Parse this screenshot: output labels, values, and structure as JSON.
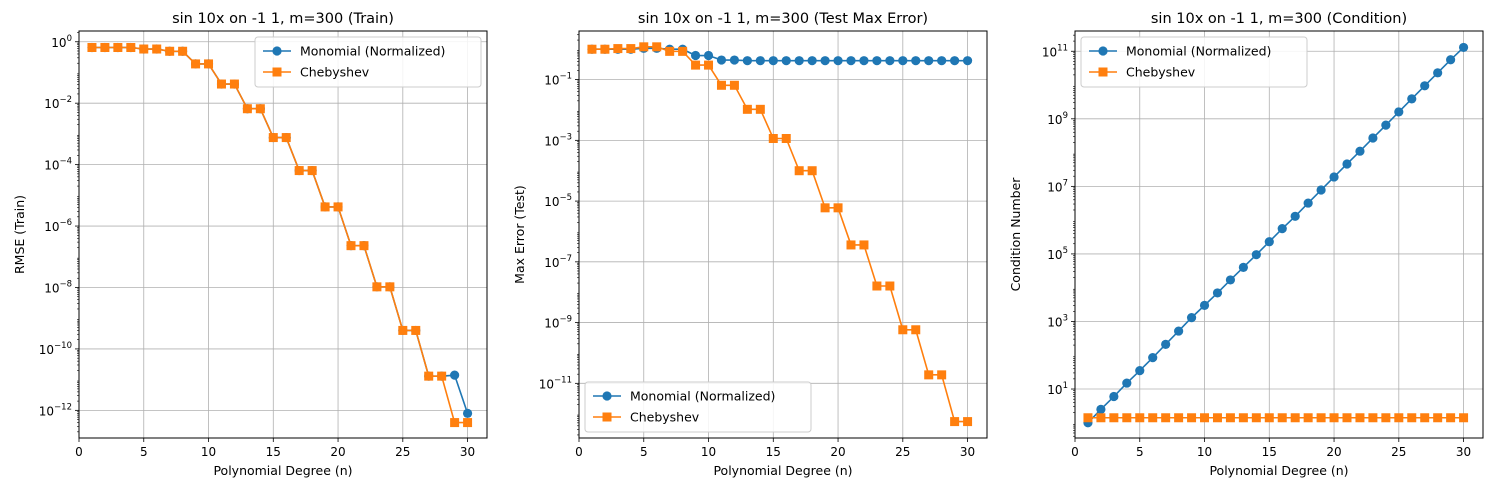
{
  "chart_data": [
    {
      "type": "line",
      "title": "sin 10x on -1 1, m=300 (Train)",
      "xlabel": "Polynomial Degree (n)",
      "ylabel": "RMSE (Train)",
      "yscale": "log",
      "grid": true,
      "legend_position": "top-right",
      "xlim": [
        0,
        31.5
      ],
      "ylim_log10": [
        -12.9,
        0.35
      ],
      "x_ticks": [
        0,
        5,
        10,
        15,
        20,
        25,
        30
      ],
      "y_tick_exponents": [
        -12,
        -10,
        -8,
        -6,
        -4,
        -2,
        0
      ],
      "x": [
        1,
        2,
        3,
        4,
        5,
        6,
        7,
        8,
        9,
        10,
        11,
        12,
        13,
        14,
        15,
        16,
        17,
        18,
        19,
        20,
        21,
        22,
        23,
        24,
        25,
        26,
        27,
        28,
        29,
        30
      ],
      "series": [
        {
          "name": "Monomial (Normalized)",
          "color": "#1f77b4",
          "marker": "circle",
          "values": [
            0.65,
            0.65,
            0.65,
            0.65,
            0.58,
            0.58,
            0.49,
            0.49,
            0.19,
            0.19,
            0.042,
            0.042,
            0.0066,
            0.0066,
            0.00076,
            0.00076,
            6.4e-05,
            6.4e-05,
            4.2e-06,
            4.2e-06,
            2.3e-07,
            2.3e-07,
            1.05e-08,
            1.05e-08,
            4e-10,
            4e-10,
            1.3e-11,
            1.3e-11,
            1.4e-11,
            8e-13
          ]
        },
        {
          "name": "Chebyshev",
          "color": "#ff7f0e",
          "marker": "square",
          "values": [
            0.65,
            0.65,
            0.65,
            0.65,
            0.58,
            0.58,
            0.49,
            0.49,
            0.19,
            0.19,
            0.042,
            0.042,
            0.0066,
            0.0066,
            0.00076,
            0.00076,
            6.4e-05,
            6.4e-05,
            4.2e-06,
            4.2e-06,
            2.3e-07,
            2.3e-07,
            1.05e-08,
            1.05e-08,
            4e-10,
            4e-10,
            1.3e-11,
            1.3e-11,
            4e-13,
            4e-13
          ]
        }
      ]
    },
    {
      "type": "line",
      "title": "sin 10x on -1 1, m=300 (Test Max Error)",
      "xlabel": "Polynomial Degree (n)",
      "ylabel": "Max Error (Test)",
      "yscale": "log",
      "grid": true,
      "legend_position": "bottom-left",
      "xlim": [
        0,
        31.5
      ],
      "ylim_log10": [
        -12.8,
        0.6
      ],
      "x_ticks": [
        0,
        5,
        10,
        15,
        20,
        25,
        30
      ],
      "y_tick_exponents": [
        -11,
        -9,
        -7,
        -5,
        -3,
        -1
      ],
      "x": [
        1,
        2,
        3,
        4,
        5,
        6,
        7,
        8,
        9,
        10,
        11,
        12,
        13,
        14,
        15,
        16,
        17,
        18,
        19,
        20,
        21,
        22,
        23,
        24,
        25,
        26,
        27,
        28,
        29,
        30
      ],
      "series": [
        {
          "name": "Monomial (Normalized)",
          "color": "#1f77b4",
          "marker": "circle",
          "values": [
            1.0,
            1.0,
            1.0,
            1.0,
            1.07,
            1.07,
            1.0,
            1.0,
            0.62,
            0.62,
            0.44,
            0.44,
            0.42,
            0.42,
            0.42,
            0.42,
            0.42,
            0.42,
            0.42,
            0.42,
            0.42,
            0.42,
            0.42,
            0.42,
            0.42,
            0.42,
            0.42,
            0.42,
            0.42,
            0.42
          ]
        },
        {
          "name": "Chebyshev",
          "color": "#ff7f0e",
          "marker": "square",
          "values": [
            1.0,
            1.0,
            1.05,
            1.05,
            1.2,
            1.2,
            0.85,
            0.85,
            0.3,
            0.3,
            0.065,
            0.065,
            0.0105,
            0.0105,
            0.00115,
            0.00115,
            0.0001,
            0.0001,
            6e-06,
            6e-06,
            3.6e-07,
            3.6e-07,
            1.6e-08,
            1.6e-08,
            5.8e-10,
            5.8e-10,
            1.9e-11,
            1.9e-11,
            5.5e-13,
            5.5e-13
          ]
        }
      ]
    },
    {
      "type": "line",
      "title": "sin 10x on -1 1, m=300 (Condition)",
      "xlabel": "Polynomial Degree (n)",
      "ylabel": "Condition Number",
      "yscale": "log",
      "grid": true,
      "legend_position": "top-left",
      "xlim": [
        0,
        31.5
      ],
      "ylim_log10": [
        -0.45,
        11.6
      ],
      "x_ticks": [
        0,
        5,
        10,
        15,
        20,
        25,
        30
      ],
      "y_tick_exponents": [
        1,
        3,
        5,
        7,
        9,
        11
      ],
      "x": [
        1,
        2,
        3,
        4,
        5,
        6,
        7,
        8,
        9,
        10,
        11,
        12,
        13,
        14,
        15,
        16,
        17,
        18,
        19,
        20,
        21,
        22,
        23,
        24,
        25,
        26,
        27,
        28,
        29,
        30
      ],
      "series": [
        {
          "name": "Monomial (Normalized)",
          "color": "#1f77b4",
          "marker": "circle",
          "values": [
            1.0,
            2.5,
            6.0,
            15,
            35,
            85,
            210,
            520,
            1300,
            3000,
            7000,
            17000,
            40000,
            95000,
            230000,
            560000,
            1300000,
            3200000,
            7800000,
            19000000,
            46000000,
            110000000,
            270000000,
            650000000,
            1600000000,
            3900000000,
            9500000000,
            23000000000,
            56000000000,
            130000000000
          ]
        },
        {
          "name": "Chebyshev",
          "color": "#ff7f0e",
          "marker": "square",
          "values": [
            1.41,
            1.41,
            1.41,
            1.41,
            1.41,
            1.41,
            1.41,
            1.41,
            1.41,
            1.41,
            1.41,
            1.41,
            1.41,
            1.41,
            1.41,
            1.41,
            1.41,
            1.41,
            1.41,
            1.41,
            1.41,
            1.41,
            1.41,
            1.41,
            1.41,
            1.41,
            1.41,
            1.41,
            1.41,
            1.41
          ]
        }
      ]
    }
  ]
}
